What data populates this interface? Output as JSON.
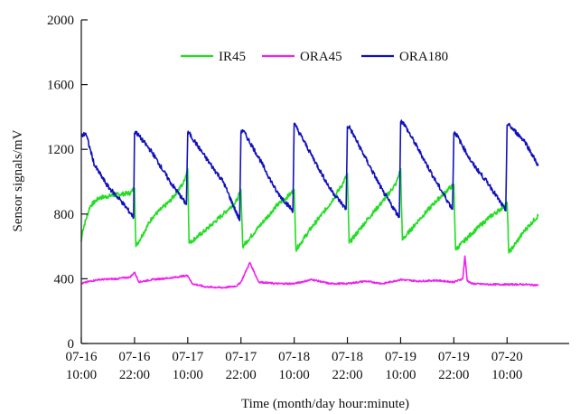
{
  "chart_data": {
    "type": "line",
    "xlabel": "Time (month/day  hour:minute)",
    "ylabel": "Sensor signals/mV",
    "xlim": [
      0,
      110
    ],
    "ylim": [
      0,
      2000
    ],
    "yticks": [
      0,
      400,
      800,
      1200,
      1600,
      2000
    ],
    "xticks": [
      {
        "t": 0,
        "date": "07-16",
        "time": "10:00"
      },
      {
        "t": 12,
        "date": "07-16",
        "time": "22:00"
      },
      {
        "t": 24,
        "date": "07-17",
        "time": "10:00"
      },
      {
        "t": 36,
        "date": "07-17",
        "time": "22:00"
      },
      {
        "t": 48,
        "date": "07-18",
        "time": "10:00"
      },
      {
        "t": 60,
        "date": "07-18",
        "time": "22:00"
      },
      {
        "t": 72,
        "date": "07-19",
        "time": "10:00"
      },
      {
        "t": 84,
        "date": "07-19",
        "time": "22:00"
      },
      {
        "t": 96,
        "date": "07-20",
        "time": "10:00"
      }
    ],
    "legend_position": "top-center",
    "grid": false,
    "series": [
      {
        "name": "IR45",
        "color": "#22dd22",
        "x": [
          0,
          0.3,
          2,
          4,
          8,
          11,
          12,
          12.3,
          16,
          20,
          23,
          24,
          24.3,
          28,
          32,
          35,
          36,
          36.4,
          40,
          44,
          47,
          48,
          48.4,
          52,
          56,
          59,
          60,
          60.4,
          64,
          68,
          71,
          72,
          72.4,
          76,
          80,
          83,
          84,
          84.4,
          88,
          92,
          95,
          96,
          96.4,
          100,
          103
        ],
        "y": [
          630,
          700,
          850,
          900,
          920,
          930,
          960,
          600,
          780,
          880,
          990,
          1080,
          620,
          700,
          800,
          880,
          950,
          600,
          720,
          850,
          920,
          950,
          580,
          720,
          860,
          990,
          1050,
          620,
          750,
          880,
          990,
          1080,
          640,
          760,
          880,
          960,
          980,
          580,
          680,
          780,
          840,
          870,
          560,
          700,
          790
        ]
      },
      {
        "name": "ORA45",
        "color": "#ee22ee",
        "x": [
          0,
          2,
          4,
          8,
          11,
          12,
          13,
          16,
          20,
          24,
          25,
          28,
          32,
          35,
          36,
          37,
          38,
          40,
          44,
          48,
          52,
          56,
          60,
          64,
          68,
          72,
          76,
          80,
          84,
          86,
          86.5,
          87,
          88,
          92,
          96,
          100,
          103
        ],
        "y": [
          370,
          385,
          395,
          400,
          410,
          440,
          380,
          395,
          405,
          420,
          370,
          350,
          345,
          355,
          380,
          440,
          500,
          380,
          370,
          370,
          395,
          370,
          370,
          385,
          370,
          395,
          385,
          390,
          380,
          400,
          540,
          390,
          370,
          365,
          365,
          365,
          360
        ]
      },
      {
        "name": "ORA180",
        "color": "#1111bb",
        "x": [
          0,
          1,
          3,
          6,
          9,
          11.8,
          12,
          12.2,
          16,
          20,
          23.7,
          24,
          24.3,
          28,
          32,
          35.7,
          36,
          36.4,
          40,
          44,
          47.7,
          48,
          48.4,
          52,
          56,
          59.7,
          60,
          60.4,
          64,
          68,
          71.7,
          72,
          72.5,
          76,
          80,
          83.7,
          84,
          84.4,
          88,
          92,
          95.7,
          96,
          96.4,
          100,
          103
        ],
        "y": [
          1280,
          1300,
          1100,
          970,
          880,
          780,
          1300,
          1310,
          1180,
          1000,
          860,
          1300,
          1300,
          1150,
          1000,
          760,
          1300,
          1320,
          1150,
          940,
          820,
          1360,
          1340,
          1160,
          960,
          830,
          1340,
          1340,
          1150,
          940,
          780,
          1370,
          1370,
          1200,
          1000,
          830,
          1300,
          1300,
          1120,
          980,
          820,
          1350,
          1350,
          1250,
          1100
        ]
      }
    ]
  }
}
